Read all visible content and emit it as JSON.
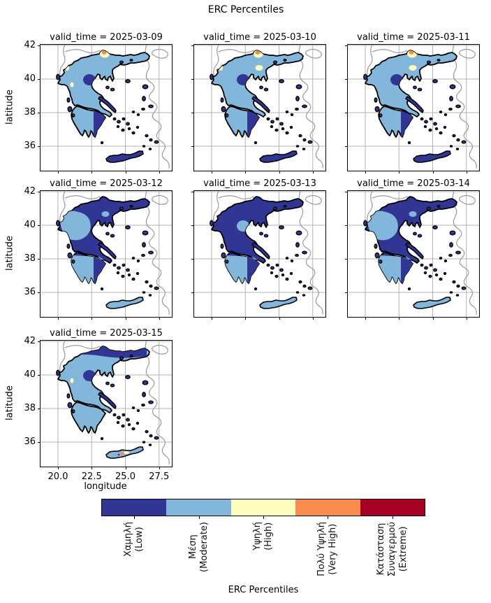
{
  "figure": {
    "title": "ERC Percentiles",
    "xlabel": "longitude",
    "ylabel": "latitude"
  },
  "axes": {
    "x_tick_labels": [
      "20.0",
      "22.5",
      "25.0",
      "27.5"
    ],
    "y_tick_labels": [
      "42",
      "40",
      "38",
      "36"
    ]
  },
  "palette": {
    "low": "#313695",
    "moderate": "#82b6da",
    "high": "#feffbf",
    "very_high": "#f78c4e",
    "extreme": "#a50026",
    "grid_line": "#b3b3b3",
    "neighbor_border": "#9a9a9a",
    "coastline": "#000000"
  },
  "colorbar": {
    "label": "ERC Percentiles",
    "classes": [
      {
        "name": "low",
        "lines": [
          "Χαμηλή",
          "(Low)"
        ]
      },
      {
        "name": "moderate",
        "lines": [
          "Μέση",
          "(Moderate)"
        ]
      },
      {
        "name": "high",
        "lines": [
          "Υψηλή",
          "(High)"
        ]
      },
      {
        "name": "very_high",
        "lines": [
          "Πολύ Υψηλή",
          "(Very High)"
        ]
      },
      {
        "name": "extreme",
        "lines": [
          "Κατάσταση",
          "Συναγερμού",
          "(Extreme)"
        ]
      }
    ]
  },
  "facets": [
    {
      "title": "valid_time = 2025-03-09",
      "fills": {
        "base": "moderate",
        "ov_west": "none",
        "ov_center": "low",
        "ov_top": "none",
        "ov_ne": "none",
        "ov_pelop": "none",
        "ov_pelop_east": "low",
        "spot_nw_a": "high",
        "spot_nw_b": "high",
        "spot_halo": "high",
        "spot_vh": "very_high",
        "euboea": "low",
        "islands": "low",
        "crete": "low",
        "crete_spot_a": "none",
        "crete_spot_b": "none",
        "crete_spot_c": "none"
      }
    },
    {
      "title": "valid_time = 2025-03-10",
      "fills": {
        "base": "moderate",
        "ov_west": "none",
        "ov_center": "low",
        "ov_top": "none",
        "ov_ne": "high",
        "ov_pelop": "none",
        "ov_pelop_east": "low",
        "spot_nw_a": "high",
        "spot_nw_b": "none",
        "spot_halo": "high",
        "spot_vh": "very_high",
        "euboea": "low",
        "islands": "low",
        "crete": "low",
        "crete_spot_a": "none",
        "crete_spot_b": "none",
        "crete_spot_c": "none"
      }
    },
    {
      "title": "valid_time = 2025-03-11",
      "fills": {
        "base": "moderate",
        "ov_west": "none",
        "ov_center": "low",
        "ov_top": "none",
        "ov_ne": "high",
        "ov_pelop": "none",
        "ov_pelop_east": "low",
        "spot_nw_a": "none",
        "spot_nw_b": "none",
        "spot_halo": "high",
        "spot_vh": "very_high",
        "euboea": "low",
        "islands": "low",
        "crete": "low",
        "crete_spot_a": "none",
        "crete_spot_b": "none",
        "crete_spot_c": "none"
      }
    },
    {
      "title": "valid_time = 2025-03-12",
      "fills": {
        "base": "low",
        "ov_west": "moderate",
        "ov_center": "none",
        "ov_top": "none",
        "ov_ne": "moderate",
        "ov_pelop": "moderate",
        "ov_pelop_east": "low",
        "spot_nw_a": "none",
        "spot_nw_b": "none",
        "spot_halo": "none",
        "spot_vh": "none",
        "euboea": "low",
        "islands": "low",
        "crete": "moderate",
        "crete_spot_a": "none",
        "crete_spot_b": "none",
        "crete_spot_c": "none"
      }
    },
    {
      "title": "valid_time = 2025-03-13",
      "fills": {
        "base": "low",
        "ov_west": "none",
        "ov_center": "moderate",
        "ov_top": "none",
        "ov_ne": "none",
        "ov_pelop": "moderate",
        "ov_pelop_east": "low",
        "spot_nw_a": "none",
        "spot_nw_b": "none",
        "spot_halo": "none",
        "spot_vh": "none",
        "euboea": "low",
        "islands": "low",
        "crete": "moderate",
        "crete_spot_a": "none",
        "crete_spot_b": "none",
        "crete_spot_c": "none"
      }
    },
    {
      "title": "valid_time = 2025-03-14",
      "fills": {
        "base": "low",
        "ov_west": "moderate",
        "ov_center": "none",
        "ov_top": "none",
        "ov_ne": "moderate",
        "ov_pelop": "moderate",
        "ov_pelop_east": "low",
        "spot_nw_a": "none",
        "spot_nw_b": "none",
        "spot_halo": "none",
        "spot_vh": "none",
        "euboea": "low",
        "islands": "low",
        "crete": "moderate",
        "crete_spot_a": "none",
        "crete_spot_b": "none",
        "crete_spot_c": "none"
      }
    },
    {
      "title": "valid_time = 2025-03-15",
      "fills": {
        "base": "moderate",
        "ov_west": "none",
        "ov_center": "low",
        "ov_top": "low",
        "ov_ne": "none",
        "ov_pelop": "none",
        "ov_pelop_east": "none",
        "spot_nw_a": "none",
        "spot_nw_b": "high",
        "spot_halo": "none",
        "spot_vh": "none",
        "euboea": "low",
        "islands": "low",
        "crete": "moderate",
        "crete_spot_a": "very_high",
        "crete_spot_b": "high",
        "crete_spot_c": "extreme"
      }
    }
  ],
  "chart_data": {
    "type": "heatmap",
    "subtype": "faceted categorical choropleth map of Greece (ERC percentile classes)",
    "title": "ERC Percentiles",
    "facet_variable": "valid_time",
    "xlabel": "longitude",
    "ylabel": "latitude",
    "x_ticks": [
      20.0,
      22.5,
      25.0,
      27.5
    ],
    "y_ticks": [
      36,
      38,
      40,
      42
    ],
    "x_range": [
      18.7,
      28.5
    ],
    "y_range": [
      34.5,
      42.1
    ],
    "grid": true,
    "legend_position": "bottom horizontal colorbar",
    "classes": [
      "Χαμηλή (Low)",
      "Μέση (Moderate)",
      "Υψηλή (High)",
      "Πολύ Υψηλή (Very High)",
      "Κατάσταση Συναγερμού (Extreme)"
    ],
    "class_colors": [
      "#313695",
      "#82b6da",
      "#feffbf",
      "#f78c4e",
      "#a50026"
    ],
    "facets": [
      {
        "valid_time": "2025-03-09",
        "dominant_class": "Μέση (Moderate)",
        "secondary": "Χαμηλή (Low) on islands, Crete, east Peloponnese and scattered inland patches",
        "highlights": "Υψηλή (High) cream patches in NW mainland; one Πολύ Υψηλή (Very High) spot on the northern border"
      },
      {
        "valid_time": "2025-03-10",
        "dominant_class": "Μέση (Moderate)",
        "secondary": "Χαμηλή (Low) on islands, Crete and east Peloponnese",
        "highlights": "Πολύ Υψηλή (Very High) spot with Υψηλή halo on northern border; High specks near Chalkidiki"
      },
      {
        "valid_time": "2025-03-11",
        "dominant_class": "Μέση (Moderate)",
        "secondary": "Χαμηλή (Low) on islands, Crete and a central Thessaly patch",
        "highlights": "Πολύ Υψηλή (Very High) spot with Υψηλή halo on northern border"
      },
      {
        "valid_time": "2025-03-12",
        "dominant_class": "Χαμηλή (Low)",
        "secondary": "Μέση (Moderate) over west-central mainland, most of Peloponnese and Crete",
        "highlights": "no High or above"
      },
      {
        "valid_time": "2025-03-13",
        "dominant_class": "Χαμηλή (Low)",
        "secondary": "Μέση (Moderate) in small central patches, west Peloponnese and central Crete",
        "highlights": "no High or above"
      },
      {
        "valid_time": "2025-03-14",
        "dominant_class": "Χαμηλή (Low)",
        "secondary": "Μέση (Moderate) over west-central mainland, Peloponnese and Crete",
        "highlights": "no High or above"
      },
      {
        "valid_time": "2025-03-15",
        "dominant_class": "Μέση (Moderate)",
        "secondary": "Χαμηλή (Low) band across northern Greece and on islands",
        "highlights": "Πολύ Υψηλή / Κατάσταση Συναγερμού specks with Υψηλή halo on Crete"
      }
    ]
  }
}
